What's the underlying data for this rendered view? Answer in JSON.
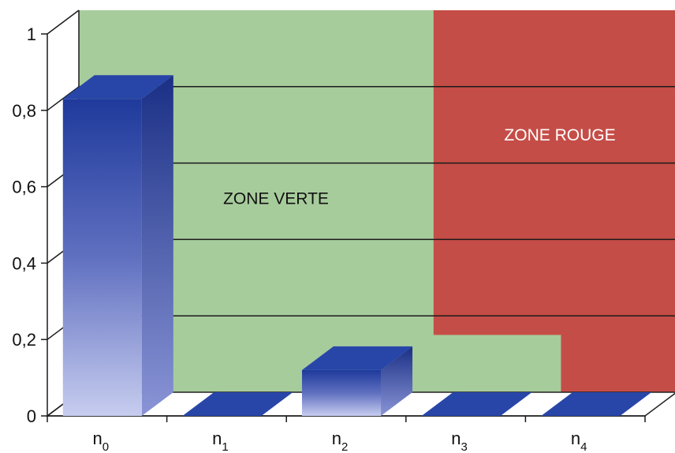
{
  "chart_data": {
    "type": "bar",
    "title": "",
    "xlabel": "",
    "ylabel": "",
    "categories": [
      {
        "base": "n",
        "sub": "0"
      },
      {
        "base": "n",
        "sub": "1"
      },
      {
        "base": "n",
        "sub": "2"
      },
      {
        "base": "n",
        "sub": "3"
      },
      {
        "base": "n",
        "sub": "4"
      }
    ],
    "values": [
      0.83,
      0,
      0.12,
      0,
      0
    ],
    "ylim": [
      0,
      1
    ],
    "yticks": [
      "0",
      "0,2",
      "0,4",
      "0,6",
      "0,8",
      "1"
    ],
    "ytick_values": [
      0,
      0.2,
      0.4,
      0.6,
      0.8,
      1
    ],
    "grid": true,
    "zones": [
      {
        "label": "ZONE VERTE",
        "color": "#a7cc9c",
        "text_color": "#111111"
      },
      {
        "label": "ZONE ROUGE",
        "color": "#c54d47",
        "text_color": "#ffffff",
        "step_value": 0.15
      }
    ],
    "bar_color_top": "#1f3a9c",
    "bar_color_bottom": "#c7cdef"
  }
}
